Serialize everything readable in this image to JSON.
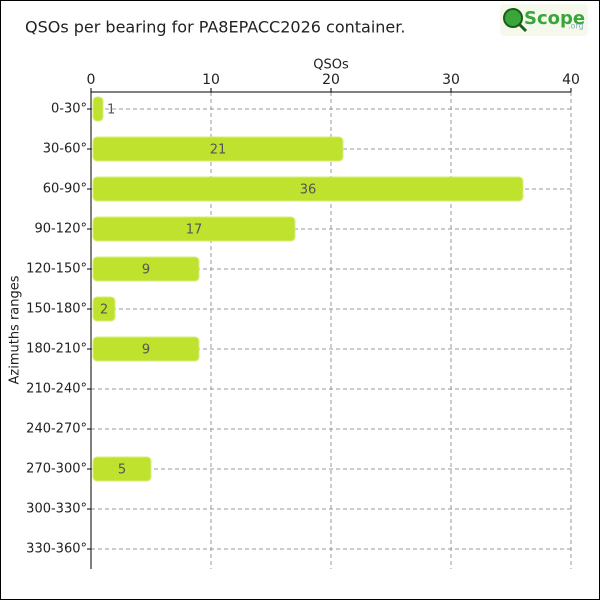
{
  "logo": {
    "name": "Scope",
    "suffix": ".org"
  },
  "chart_data": {
    "type": "bar",
    "orientation": "horizontal",
    "title": "QSOs per bearing for PA8EPACC2026 container.",
    "x_label": "QSOs",
    "y_label": "Azimuths ranges",
    "categories": [
      "0-30°",
      "30-60°",
      "60-90°",
      "90-120°",
      "120-150°",
      "150-180°",
      "180-210°",
      "210-240°",
      "240-270°",
      "270-300°",
      "300-330°",
      "330-360°"
    ],
    "values": [
      1,
      21,
      36,
      17,
      9,
      2,
      9,
      0,
      0,
      5,
      0,
      0
    ],
    "color": "#bfe22f",
    "xlim": [
      0,
      40
    ],
    "xticks": [
      0,
      10,
      20,
      30,
      40
    ],
    "grid": true
  }
}
